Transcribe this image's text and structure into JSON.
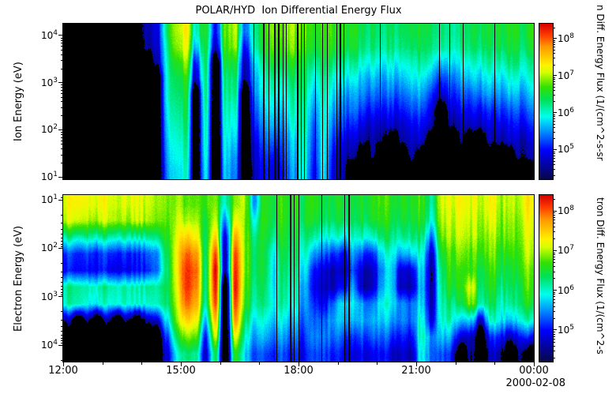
{
  "title": "POLAR/HYD  Ion Differential Energy Flux",
  "background": "#ffffff",
  "log_tick_base": "10",
  "x_axis": {
    "tick_labels": [
      "12:00",
      "15:00",
      "18:00",
      "21:00",
      "00:00"
    ],
    "date_label": "2000-02-08"
  },
  "colorbar": {
    "tick_exponents": [
      8,
      7,
      6,
      5
    ],
    "range_log10": [
      4.2,
      8.4
    ],
    "ion_title_visible": "n Diff. Energy Flux (1/(cm^2-s-sr",
    "electron_title_visible": "tron Diff. Energy Flux (1/(cm^2-s",
    "colormap_stops_log10_rgb": [
      [
        4.2,
        [
          8,
          8,
          70
        ]
      ],
      [
        5.0,
        [
          0,
          0,
          255
        ]
      ],
      [
        5.45,
        [
          0,
          130,
          255
        ]
      ],
      [
        5.9,
        [
          0,
          255,
          240
        ]
      ],
      [
        6.35,
        [
          0,
          225,
          90
        ]
      ],
      [
        6.7,
        [
          50,
          225,
          0
        ]
      ],
      [
        7.1,
        [
          215,
          255,
          0
        ]
      ],
      [
        7.3,
        [
          255,
          240,
          0
        ]
      ],
      [
        7.8,
        [
          255,
          150,
          0
        ]
      ],
      [
        8.1,
        [
          255,
          60,
          0
        ]
      ],
      [
        8.4,
        [
          215,
          0,
          0
        ]
      ]
    ]
  },
  "chart_data": [
    {
      "type": "heatmap",
      "name": "ion_spectrogram",
      "ylabel": "Ion Energy (eV)",
      "y_scale": "log",
      "y_inverted": false,
      "ylim_log10": [
        0.95,
        4.25
      ],
      "y_tick_exponents": [
        4,
        3,
        2,
        1
      ],
      "x_start": "12:00",
      "x_end": "00:00",
      "time_bin_minutes": 15,
      "grid_orientation": "columns = 15-min time bins left to right; each column = log10 flux from panel top (high energy) to bottom; 0 = no data (black)",
      "dropout_windows": [
        [
          0.4,
          0.6,
          0.2
        ],
        [
          0.6,
          0.95,
          0.03
        ]
      ],
      "values_log10_flux": [
        [
          0,
          0,
          0,
          0,
          0,
          0,
          0,
          0,
          0,
          0
        ],
        [
          0,
          0,
          0,
          0,
          0,
          0,
          0,
          0,
          0,
          0
        ],
        [
          0,
          0,
          0,
          0,
          0,
          0,
          0,
          0,
          0,
          0
        ],
        [
          0,
          0,
          0,
          0,
          0,
          0,
          0,
          0,
          0,
          0
        ],
        [
          0,
          0,
          0,
          0,
          0,
          0,
          0,
          0,
          0,
          0
        ],
        [
          0,
          0,
          0,
          0,
          0,
          0,
          0,
          0,
          0,
          0
        ],
        [
          0,
          0,
          0,
          0,
          0,
          0,
          0,
          0,
          0,
          0
        ],
        [
          0,
          0,
          0,
          0,
          0,
          0,
          0,
          0,
          0,
          0
        ],
        [
          4.7,
          4.6,
          0,
          0,
          0,
          0,
          0,
          0,
          0,
          0
        ],
        [
          4.9,
          4.8,
          4.6,
          0,
          0,
          0,
          0,
          0,
          0,
          0
        ],
        [
          6.2,
          6.0,
          5.9,
          5.8,
          5.8,
          5.7,
          5.6,
          5.5,
          5.4,
          5.3
        ],
        [
          7.0,
          6.9,
          6.6,
          6.4,
          6.3,
          6.2,
          6.1,
          6.0,
          5.9,
          5.8
        ],
        [
          7.3,
          7.2,
          6.9,
          6.6,
          6.5,
          6.4,
          6.3,
          6.2,
          6.1,
          6.0
        ],
        [
          6.0,
          5.6,
          5.0,
          4.7,
          0,
          0,
          0,
          0,
          0,
          0
        ],
        [
          6.6,
          6.5,
          6.4,
          6.3,
          6.3,
          6.2,
          6.1,
          6.1,
          6.0,
          5.9
        ],
        [
          5.0,
          4.7,
          0,
          0,
          0,
          0,
          0,
          0,
          0,
          0
        ],
        [
          6.8,
          6.7,
          6.5,
          6.3,
          6.2,
          6.1,
          6.0,
          5.9,
          5.8,
          5.7
        ],
        [
          7.1,
          7.0,
          6.6,
          6.4,
          6.3,
          6.1,
          6.0,
          5.8,
          5.6,
          5.5
        ],
        [
          5.4,
          5.0,
          4.7,
          4.6,
          0,
          0,
          0,
          0,
          0,
          0
        ],
        [
          6.3,
          6.2,
          5.9,
          5.7,
          5.6,
          5.4,
          5.2,
          5.0,
          4.9,
          4.8
        ],
        [
          6.6,
          6.5,
          6.2,
          6.0,
          5.9,
          5.7,
          5.5,
          5.3,
          5.1,
          5.0
        ],
        [
          6.7,
          6.6,
          6.3,
          6.0,
          5.8,
          5.6,
          5.4,
          5.1,
          4.8,
          4.6
        ],
        [
          6.8,
          6.7,
          6.4,
          6.1,
          5.9,
          5.7,
          5.5,
          5.3,
          5.2,
          5.1
        ],
        [
          6.8,
          6.7,
          6.4,
          6.2,
          6.0,
          5.9,
          5.8,
          5.6,
          5.5,
          5.4
        ],
        [
          6.7,
          6.6,
          6.4,
          6.3,
          6.2,
          6.1,
          6.1,
          6.0,
          6.0,
          5.9
        ],
        [
          6.6,
          6.5,
          6.2,
          5.9,
          5.7,
          5.5,
          5.3,
          5.2,
          5.1,
          5.0
        ],
        [
          6.7,
          6.6,
          6.4,
          6.2,
          6.1,
          6.0,
          6.0,
          5.9,
          5.9,
          5.8
        ],
        [
          6.7,
          6.6,
          6.3,
          6.0,
          5.8,
          5.6,
          5.4,
          5.2,
          5.0,
          4.9
        ],
        [
          6.7,
          6.6,
          6.3,
          6.0,
          5.7,
          5.5,
          5.3,
          5.0,
          4.8,
          4.7
        ],
        [
          6.6,
          6.5,
          6.2,
          5.9,
          5.6,
          5.4,
          5.1,
          4.8,
          4.6,
          0
        ],
        [
          6.5,
          6.4,
          6.1,
          5.8,
          5.6,
          5.3,
          5.0,
          4.7,
          0,
          0
        ],
        [
          6.5,
          6.4,
          6.1,
          5.8,
          5.5,
          5.2,
          4.9,
          4.7,
          4.6,
          0
        ],
        [
          6.4,
          6.3,
          6.0,
          5.7,
          5.5,
          5.2,
          4.9,
          4.6,
          0,
          0
        ],
        [
          6.3,
          6.2,
          5.9,
          5.6,
          5.3,
          5.0,
          4.7,
          0,
          0,
          0
        ],
        [
          6.4,
          6.3,
          6.0,
          5.7,
          5.4,
          5.1,
          4.8,
          4.6,
          0,
          0
        ],
        [
          6.4,
          6.3,
          6.0,
          5.8,
          5.5,
          5.2,
          4.9,
          4.7,
          4.6,
          0
        ],
        [
          6.4,
          6.3,
          6.1,
          5.8,
          5.5,
          5.2,
          4.9,
          4.7,
          0,
          0
        ],
        [
          6.3,
          6.2,
          5.9,
          5.5,
          5.1,
          4.8,
          4.6,
          0,
          0,
          0
        ],
        [
          6.2,
          6.1,
          5.6,
          5.1,
          4.7,
          0,
          0,
          0,
          0,
          0
        ],
        [
          6.3,
          6.2,
          5.9,
          5.5,
          5.2,
          4.9,
          4.6,
          0,
          0,
          0
        ],
        [
          6.4,
          6.3,
          6.0,
          5.7,
          5.4,
          5.1,
          4.8,
          4.6,
          0,
          0
        ],
        [
          6.3,
          6.2,
          5.9,
          5.6,
          5.2,
          4.9,
          4.6,
          0,
          0,
          0
        ],
        [
          6.4,
          6.3,
          6.0,
          5.7,
          5.4,
          5.0,
          4.7,
          0,
          0,
          0
        ],
        [
          6.4,
          6.3,
          6.1,
          5.8,
          5.5,
          5.1,
          4.8,
          4.6,
          0,
          0
        ],
        [
          6.5,
          6.4,
          6.1,
          5.8,
          5.5,
          5.2,
          4.9,
          4.6,
          0,
          0
        ],
        [
          6.5,
          6.4,
          6.2,
          5.9,
          5.6,
          5.2,
          4.9,
          4.7,
          0,
          0
        ],
        [
          6.5,
          6.4,
          6.2,
          5.9,
          5.6,
          5.3,
          5.0,
          4.7,
          4.6,
          0
        ],
        [
          6.6,
          6.5,
          6.2,
          6.0,
          5.7,
          5.4,
          5.1,
          4.8,
          4.6,
          0
        ]
      ]
    },
    {
      "type": "heatmap",
      "name": "electron_spectrogram",
      "ylabel": "Electron Energy (eV)",
      "y_scale": "log",
      "y_inverted": true,
      "ylim_log10": [
        0.9,
        4.34
      ],
      "y_tick_exponents": [
        1,
        2,
        3,
        4
      ],
      "x_start": "12:00",
      "x_end": "00:00",
      "time_bin_minutes": 15,
      "grid_orientation": "columns = 15-min time bins left to right; each column = log10 flux from panel top (low energy) to bottom; 0 = no data (black)",
      "dropout_windows": [
        [
          0.45,
          0.63,
          0.08
        ]
      ],
      "values_log10_flux": [
        [
          7.2,
          7.1,
          6.2,
          5.2,
          5.0,
          6.2,
          6.1,
          4.6,
          0,
          0
        ],
        [
          7.2,
          7.0,
          6.0,
          5.0,
          4.9,
          6.1,
          6.0,
          0,
          0,
          0
        ],
        [
          7.3,
          7.1,
          6.3,
          5.3,
          5.1,
          6.2,
          6.0,
          4.6,
          0,
          0
        ],
        [
          7.2,
          7.0,
          6.1,
          5.1,
          5.0,
          6.1,
          5.9,
          0,
          0,
          0
        ],
        [
          7.2,
          7.1,
          6.2,
          5.2,
          5.0,
          6.2,
          6.0,
          4.6,
          0,
          0
        ],
        [
          7.1,
          7.0,
          6.1,
          5.1,
          4.9,
          6.1,
          6.0,
          0,
          0,
          0
        ],
        [
          7.2,
          7.0,
          6.2,
          5.2,
          5.0,
          6.2,
          6.1,
          4.6,
          0,
          0
        ],
        [
          7.2,
          7.1,
          6.1,
          5.1,
          5.0,
          6.1,
          6.0,
          0,
          0,
          0
        ],
        [
          7.1,
          7.0,
          6.2,
          5.3,
          5.1,
          6.2,
          6.0,
          4.6,
          0,
          0
        ],
        [
          7.0,
          6.9,
          6.3,
          5.5,
          5.4,
          6.2,
          6.1,
          4.8,
          0,
          0
        ],
        [
          6.9,
          6.8,
          6.6,
          6.4,
          6.3,
          6.4,
          6.3,
          5.8,
          5.2,
          4.8
        ],
        [
          6.9,
          7.0,
          7.1,
          7.2,
          7.2,
          7.1,
          7.0,
          6.8,
          6.3,
          5.8
        ],
        [
          6.9,
          7.1,
          7.6,
          8.1,
          8.3,
          8.3,
          8.1,
          7.6,
          7.0,
          6.4
        ],
        [
          6.8,
          7.0,
          7.3,
          7.8,
          8.0,
          7.9,
          7.7,
          7.3,
          6.8,
          6.2
        ],
        [
          6.6,
          6.4,
          6.3,
          6.3,
          6.2,
          6.2,
          6.1,
          5.6,
          5.0,
          4.7
        ],
        [
          6.8,
          7.0,
          7.4,
          8.0,
          8.3,
          8.2,
          8.0,
          7.5,
          7.0,
          6.3
        ],
        [
          6.0,
          5.4,
          4.8,
          4.6,
          4.6,
          0,
          0,
          0,
          0,
          0
        ],
        [
          6.8,
          7.1,
          7.6,
          8.0,
          8.1,
          8.2,
          8.0,
          7.7,
          7.1,
          6.5
        ],
        [
          6.9,
          6.8,
          6.8,
          6.8,
          6.8,
          6.7,
          6.6,
          6.3,
          6.0,
          5.7
        ],
        [
          5.6,
          6.0,
          6.3,
          6.4,
          6.4,
          6.3,
          6.2,
          5.9,
          5.6,
          5.3
        ],
        [
          6.6,
          6.6,
          6.5,
          6.4,
          6.4,
          6.3,
          6.2,
          5.9,
          5.6,
          5.2
        ],
        [
          6.5,
          6.4,
          6.2,
          5.9,
          5.8,
          5.8,
          5.9,
          5.7,
          5.4,
          5.1
        ],
        [
          6.6,
          6.6,
          6.5,
          6.4,
          6.3,
          6.2,
          6.1,
          5.8,
          5.5,
          5.2
        ],
        [
          6.6,
          6.5,
          6.4,
          6.3,
          6.2,
          6.1,
          6.0,
          5.7,
          5.4,
          5.1
        ],
        [
          6.5,
          6.5,
          6.3,
          6.1,
          5.9,
          5.7,
          5.6,
          5.4,
          5.2,
          5.0
        ],
        [
          6.5,
          6.4,
          6.0,
          5.4,
          4.9,
          4.8,
          5.0,
          5.2,
          5.3,
          5.1
        ],
        [
          6.4,
          6.3,
          5.9,
          5.3,
          4.8,
          4.7,
          4.9,
          5.3,
          5.4,
          5.2
        ],
        [
          6.5,
          6.4,
          6.0,
          5.2,
          4.7,
          4.7,
          5.4,
          5.6,
          5.4,
          5.1
        ],
        [
          6.5,
          6.4,
          5.9,
          5.0,
          4.7,
          5.0,
          5.8,
          5.7,
          5.3,
          5.0
        ],
        [
          6.5,
          6.4,
          6.1,
          5.6,
          5.3,
          5.6,
          5.9,
          5.7,
          5.2,
          4.9
        ],
        [
          6.5,
          6.4,
          6.0,
          5.2,
          4.7,
          4.6,
          5.5,
          5.6,
          5.2,
          4.9
        ],
        [
          6.5,
          6.4,
          5.9,
          5.0,
          4.6,
          4.6,
          5.3,
          5.5,
          5.2,
          4.8
        ],
        [
          6.6,
          6.5,
          6.2,
          5.7,
          5.4,
          5.5,
          5.8,
          5.6,
          5.2,
          4.9
        ],
        [
          6.6,
          6.5,
          6.3,
          6.0,
          5.8,
          5.8,
          5.9,
          5.6,
          5.2,
          4.8
        ],
        [
          6.6,
          6.5,
          6.2,
          5.6,
          4.8,
          4.7,
          5.5,
          5.5,
          5.1,
          4.8
        ],
        [
          6.6,
          6.5,
          6.3,
          5.8,
          4.9,
          4.7,
          5.4,
          5.4,
          5.0,
          4.7
        ],
        [
          6.6,
          6.5,
          6.2,
          5.9,
          5.7,
          5.6,
          5.7,
          5.9,
          6.0,
          5.8
        ],
        [
          6.3,
          6.1,
          5.5,
          4.9,
          4.7,
          4.7,
          4.8,
          5.0,
          5.6,
          5.5
        ],
        [
          7.0,
          6.9,
          6.7,
          6.4,
          6.2,
          6.1,
          6.0,
          5.9,
          5.6,
          5.2
        ],
        [
          7.1,
          7.0,
          6.9,
          6.7,
          6.6,
          6.5,
          6.2,
          6.0,
          5.5,
          5.0
        ],
        [
          7.2,
          7.1,
          7.0,
          6.8,
          6.6,
          6.5,
          6.3,
          5.6,
          4.7,
          0
        ],
        [
          7.2,
          7.1,
          7.0,
          6.8,
          6.7,
          7.2,
          6.9,
          5.8,
          4.8,
          4.6
        ],
        [
          7.1,
          7.0,
          6.9,
          6.7,
          6.5,
          6.4,
          6.2,
          4.8,
          0,
          0
        ],
        [
          7.2,
          7.1,
          6.9,
          6.8,
          6.6,
          6.5,
          6.3,
          5.9,
          5.0,
          4.6
        ],
        [
          7.1,
          7.0,
          6.9,
          6.7,
          6.6,
          6.4,
          6.2,
          6.0,
          5.2,
          4.7
        ],
        [
          7.2,
          7.1,
          7.0,
          6.8,
          6.6,
          6.5,
          6.3,
          5.8,
          4.8,
          0
        ],
        [
          7.1,
          7.0,
          6.9,
          6.8,
          6.7,
          6.5,
          6.4,
          6.0,
          5.1,
          4.6
        ],
        [
          7.2,
          7.1,
          7.0,
          6.9,
          6.7,
          6.6,
          6.4,
          5.9,
          4.9,
          0
        ]
      ]
    }
  ]
}
